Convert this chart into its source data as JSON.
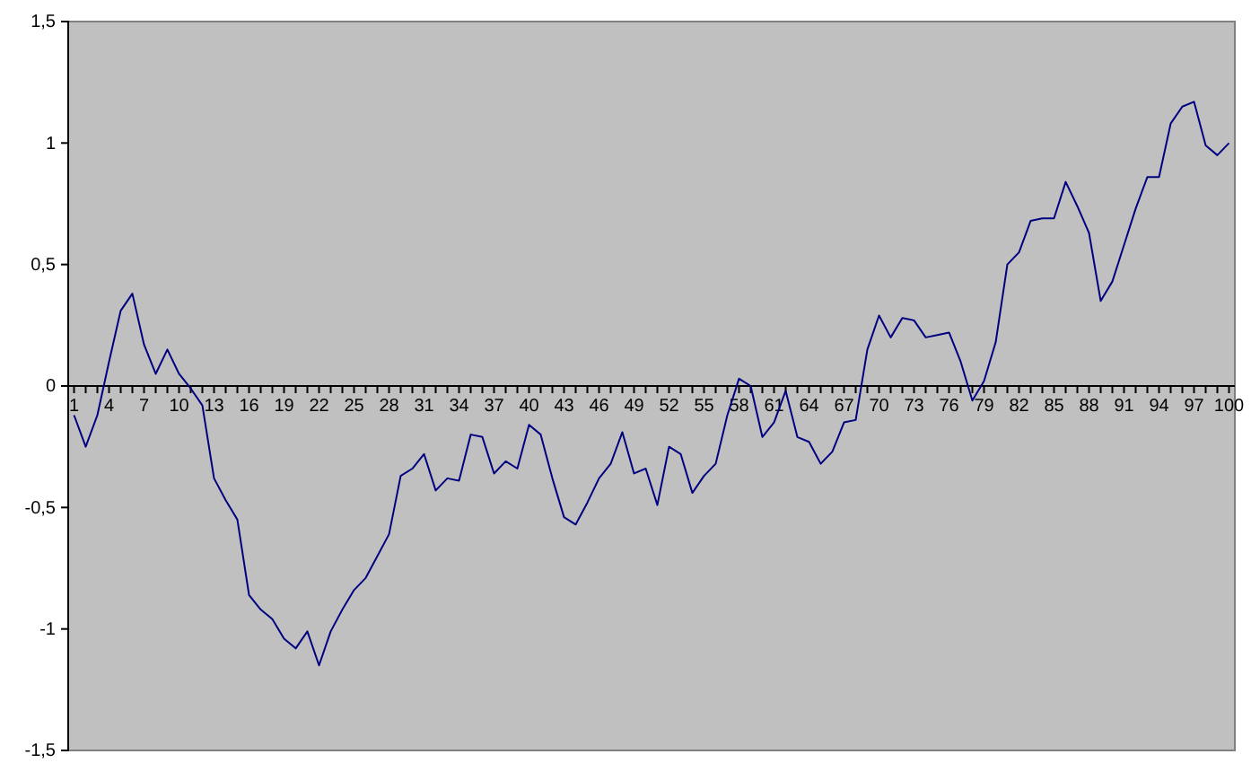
{
  "chart_data": {
    "type": "line",
    "categories": [
      "1",
      null,
      null,
      "4",
      null,
      null,
      "7",
      null,
      null,
      "10",
      null,
      null,
      "13",
      null,
      null,
      "16",
      null,
      null,
      "19",
      null,
      null,
      "22",
      null,
      null,
      "25",
      null,
      null,
      "28",
      null,
      null,
      "31",
      null,
      null,
      "34",
      null,
      null,
      "37",
      null,
      null,
      "40",
      null,
      null,
      "43",
      null,
      null,
      "46",
      null,
      null,
      "49",
      null,
      null,
      "52",
      null,
      null,
      "55",
      null,
      null,
      "58",
      null,
      null,
      "61",
      null,
      null,
      "64",
      null,
      null,
      "67",
      null,
      null,
      "70",
      null,
      null,
      "73",
      null,
      null,
      "76",
      null,
      null,
      "79",
      null,
      null,
      "82",
      null,
      null,
      "85",
      null,
      null,
      "88",
      null,
      null,
      "91",
      null,
      null,
      "94",
      null,
      null,
      "97",
      null,
      null,
      "100"
    ],
    "series": [
      {
        "color": "#000080",
        "values": [
          -0.12,
          -0.25,
          -0.12,
          0.1,
          0.31,
          0.38,
          0.17,
          0.05,
          0.15,
          0.05,
          -0.01,
          -0.08,
          -0.38,
          -0.47,
          -0.55,
          -0.86,
          -0.92,
          -0.96,
          -1.04,
          -1.08,
          -1.01,
          -1.15,
          -1.01,
          -0.92,
          -0.84,
          -0.79,
          -0.7,
          -0.61,
          -0.37,
          -0.34,
          -0.28,
          -0.43,
          -0.38,
          -0.39,
          -0.2,
          -0.21,
          -0.36,
          -0.31,
          -0.34,
          -0.16,
          -0.2,
          -0.38,
          -0.54,
          -0.57,
          -0.48,
          -0.38,
          -0.32,
          -0.19,
          -0.36,
          -0.34,
          -0.49,
          -0.25,
          -0.28,
          -0.44,
          -0.37,
          -0.32,
          -0.12,
          0.03,
          0,
          -0.21,
          -0.15,
          -0.02,
          -0.21,
          -0.23,
          -0.32,
          -0.27,
          -0.15,
          -0.14,
          0.15,
          0.29,
          0.2,
          0.28,
          0.27,
          0.2,
          0.21,
          0.22,
          0.1,
          -0.06,
          0.02,
          0.18,
          0.5,
          0.55,
          0.68,
          0.69,
          0.69,
          0.84,
          0.74,
          0.63,
          0.35,
          0.43,
          0.58,
          0.73,
          0.86,
          0.86,
          1.08,
          1.15,
          1.17,
          0.99,
          0.95,
          1.0
        ]
      }
    ],
    "ylim": [
      -1.5,
      1.5
    ],
    "yticks": [
      {
        "value": -1.5,
        "label": "-1,5"
      },
      -1,
      {
        "value": -0.5,
        "label": "-0,5"
      },
      0,
      {
        "value": 0.5,
        "label": "0,5"
      },
      1,
      {
        "value": 1.5,
        "label": "1,5"
      }
    ],
    "marker": "none",
    "line_style": "solid"
  }
}
